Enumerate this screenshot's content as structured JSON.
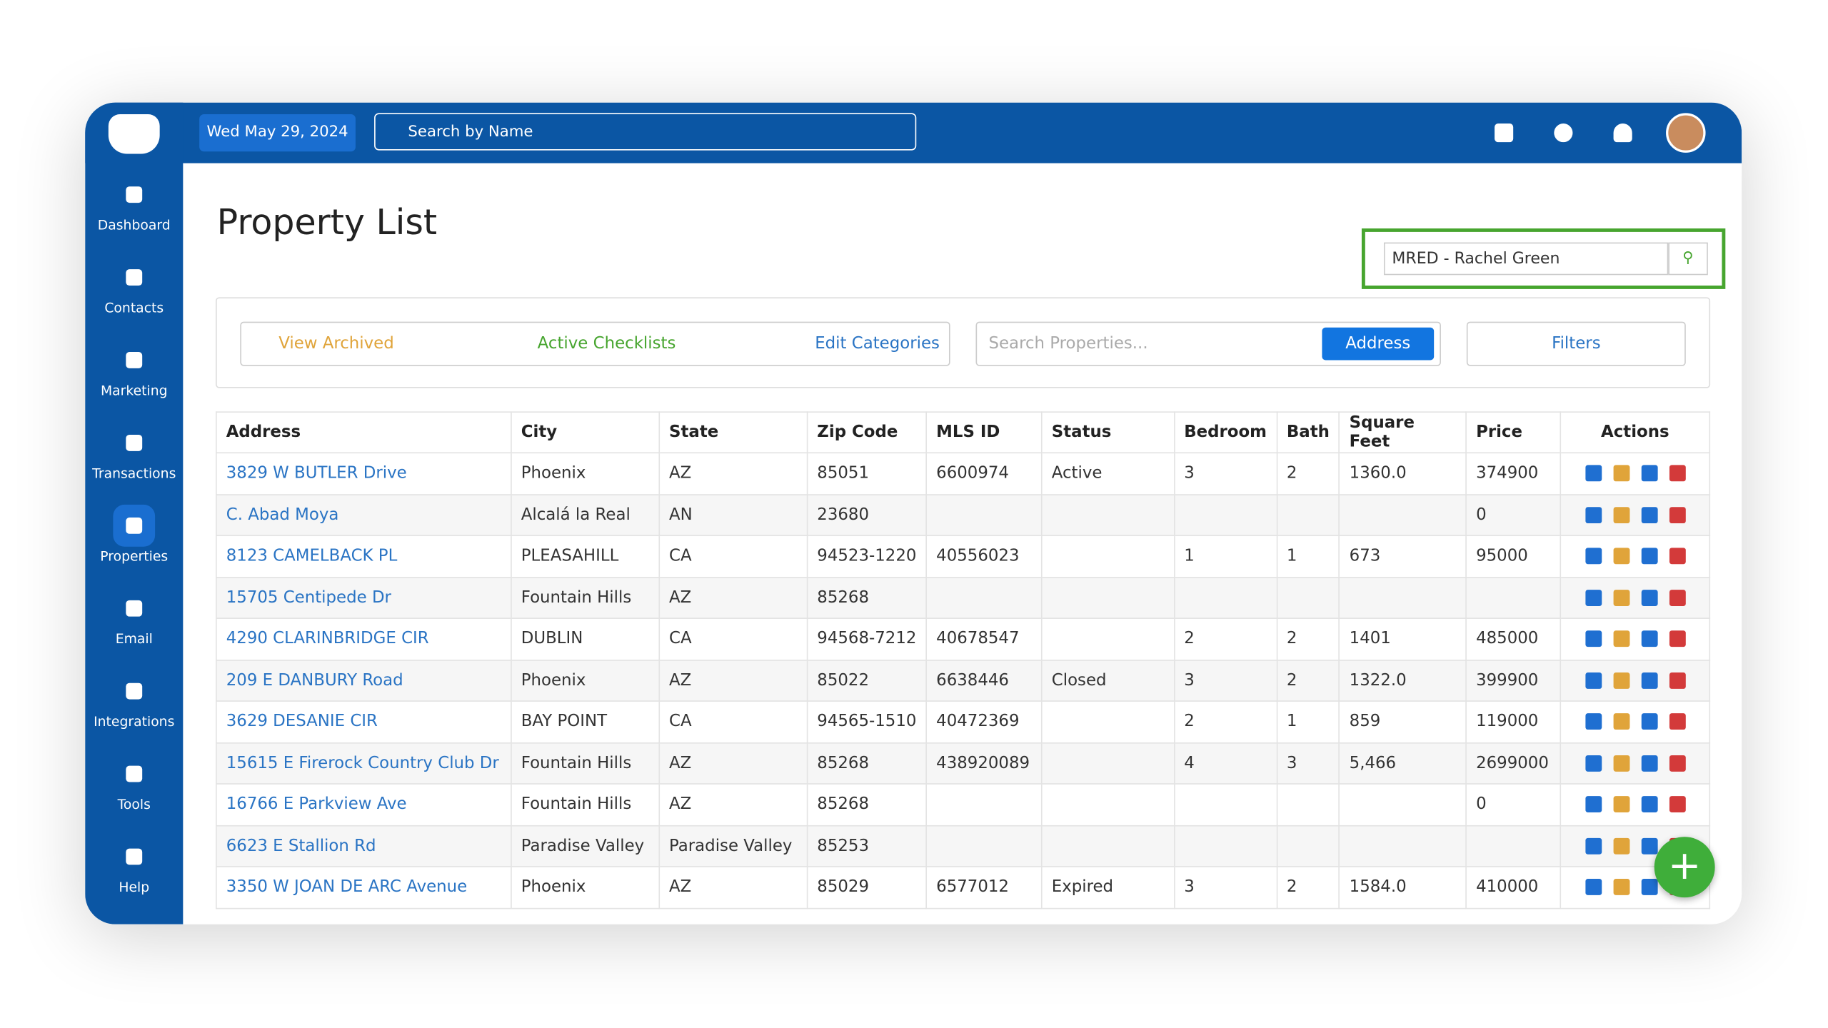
{
  "header": {
    "date": "Wed May 29, 2024",
    "search_placeholder": "Search by Name"
  },
  "sidebar": [
    "Dashboard",
    "Contacts",
    "Marketing",
    "Transactions",
    "Properties",
    "Email",
    "Integrations",
    "Tools",
    "Help"
  ],
  "page": {
    "title": "Property List",
    "agent_select": "MRED - Rachel Green",
    "toolbar": {
      "view_archived": "View Archived",
      "active_checklists": "Active Checklists",
      "edit_categories": "Edit Categories",
      "search_placeholder": "Search Properties...",
      "search_field": "Address",
      "filters": "Filters"
    }
  },
  "table": {
    "columns": [
      "Address",
      "City",
      "State",
      "Zip Code",
      "MLS ID",
      "Status",
      "Bedroom",
      "Bath",
      "Square Feet",
      "Price",
      "Actions"
    ],
    "rows": [
      [
        "3829 W BUTLER Drive",
        "Phoenix",
        "AZ",
        "85051",
        "6600974",
        "Active",
        "3",
        "2",
        "1360.0",
        "374900"
      ],
      [
        "C. Abad Moya",
        "Alcalá la Real",
        "AN",
        "23680",
        null,
        null,
        null,
        null,
        null,
        "0"
      ],
      [
        "8123 CAMELBACK PL",
        "PLEASAHILL",
        "CA",
        "94523-1220",
        "40556023",
        null,
        "1",
        "1",
        "673",
        "95000"
      ],
      [
        "15705 Centipede Dr",
        "Fountain Hills",
        "AZ",
        "85268",
        null,
        null,
        null,
        null,
        null,
        null
      ],
      [
        "4290 CLARINBRIDGE CIR",
        "DUBLIN",
        "CA",
        "94568-7212",
        "40678547",
        null,
        "2",
        "2",
        "1401",
        "485000"
      ],
      [
        "209 E DANBURY Road",
        "Phoenix",
        "AZ",
        "85022",
        "6638446",
        "Closed",
        "3",
        "2",
        "1322.0",
        "399900"
      ],
      [
        "3629 DESANIE CIR",
        "BAY POINT",
        "CA",
        "94565-1510",
        "40472369",
        null,
        "2",
        "1",
        "859",
        "119000"
      ],
      [
        "15615 E Firerock Country Club Dr",
        "Fountain Hills",
        "AZ",
        "85268",
        "438920089",
        null,
        "4",
        "3",
        "5,466",
        "2699000"
      ],
      [
        "16766 E Parkview Ave",
        "Fountain Hills",
        "AZ",
        "85268",
        null,
        null,
        null,
        null,
        null,
        "0"
      ],
      [
        "6623 E Stallion Rd",
        "Paradise Valley",
        "Paradise Valley",
        "85253",
        null,
        null,
        null,
        null,
        null,
        null
      ],
      [
        "3350 W JOAN DE ARC Avenue",
        "Phoenix",
        "AZ",
        "85029",
        "6577012",
        "Expired",
        "3",
        "2",
        "1584.0",
        "410000"
      ]
    ]
  }
}
